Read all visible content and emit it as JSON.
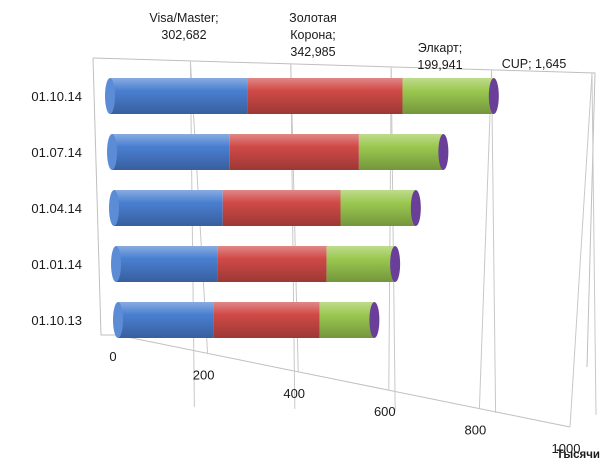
{
  "chart_data": {
    "type": "bar",
    "orientation": "horizontal",
    "stacked": true,
    "style": "3d-cylinder",
    "categories": [
      "01.10.13",
      "01.01.14",
      "01.04.14",
      "01.07.14",
      "01.10.14"
    ],
    "series": [
      {
        "name": "Visa/Master",
        "color": "#4a7fd1",
        "values": [
          210,
          225,
          240,
          260,
          302.682
        ]
      },
      {
        "name": "Золотая Корона",
        "color": "#d04a47",
        "values": [
          235,
          240,
          260,
          285,
          342.985
        ]
      },
      {
        "name": "Элкарт",
        "color": "#9bc850",
        "values": [
          120,
          150,
          165,
          185,
          199.941
        ]
      },
      {
        "name": "CUP",
        "color": "#6a3f9a",
        "values": [
          1.0,
          1.2,
          1.3,
          1.5,
          1.645
        ]
      }
    ],
    "xlim": [
      0,
      1000
    ],
    "xticks": [
      "0",
      "200",
      "400",
      "600",
      "800",
      "1000"
    ],
    "grid": true,
    "legend": "none",
    "unit_label": "Тысячи",
    "data_labels": [
      {
        "lines": [
          "Visa/Master;",
          "302,682"
        ]
      },
      {
        "lines": [
          "Золотая",
          "Корона;",
          "342,985"
        ]
      },
      {
        "lines": [
          "Элкарт;",
          "199,941"
        ]
      },
      {
        "lines": [
          "CUP; 1,645"
        ]
      }
    ]
  }
}
